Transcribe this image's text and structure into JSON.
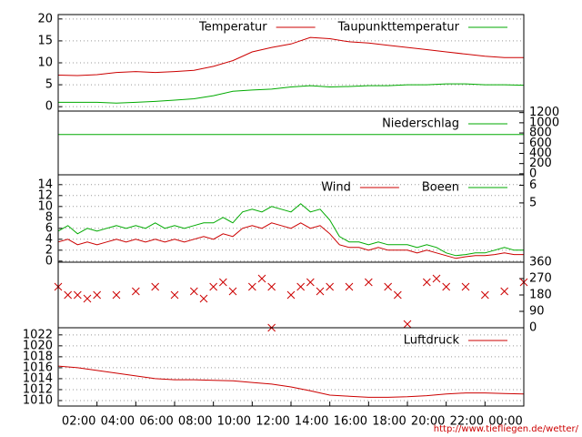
{
  "chart_data": [
    {
      "type": "line",
      "legend": "upper right",
      "grid": true,
      "x": [
        0,
        1,
        2,
        3,
        4,
        5,
        6,
        7,
        8,
        9,
        10,
        11,
        12,
        13,
        14,
        15,
        16,
        17,
        18,
        19,
        20,
        21,
        22,
        23,
        24
      ],
      "xlim": [
        0,
        24
      ],
      "ylim": [
        -1,
        21
      ],
      "yticks": [
        0,
        5,
        10,
        15,
        20
      ],
      "series": [
        {
          "name": "Temperatur",
          "color": "#cc0000",
          "values": [
            7.2,
            7.1,
            7.3,
            7.8,
            8.0,
            7.8,
            8.0,
            8.3,
            9.2,
            10.5,
            12.5,
            13.5,
            14.3,
            15.8,
            15.5,
            14.8,
            14.5,
            14.0,
            13.5,
            13.0,
            12.5,
            12.0,
            11.5,
            11.2,
            11.2
          ]
        },
        {
          "name": "Taupunkttemperatur",
          "color": "#00aa00",
          "values": [
            1.0,
            1.0,
            1.0,
            0.8,
            1.0,
            1.2,
            1.5,
            1.8,
            2.5,
            3.5,
            3.8,
            4.0,
            4.5,
            4.8,
            4.5,
            4.6,
            4.8,
            4.8,
            5.0,
            5.0,
            5.2,
            5.2,
            5.0,
            5.0,
            4.9
          ]
        }
      ]
    },
    {
      "type": "line",
      "legend": "upper right",
      "grid": false,
      "x": [
        0,
        24
      ],
      "xlim": [
        0,
        24
      ],
      "y2lim": [
        -20,
        1230
      ],
      "y2ticks": [
        0,
        200,
        400,
        600,
        800,
        1000,
        1200
      ],
      "series": [
        {
          "name": "Niederschlag",
          "color": "#00aa00",
          "axis": "y2",
          "values": [
            770,
            770
          ]
        }
      ]
    },
    {
      "type": "line",
      "legend": "upper right",
      "grid": true,
      "x": [
        0,
        0.5,
        1,
        1.5,
        2,
        2.5,
        3,
        3.5,
        4,
        4.5,
        5,
        5.5,
        6,
        6.5,
        7,
        7.5,
        8,
        8.5,
        9,
        9.5,
        10,
        10.5,
        11,
        11.5,
        12,
        12.5,
        13,
        13.5,
        14,
        14.5,
        15,
        15.5,
        16,
        16.5,
        17,
        17.5,
        18,
        18.5,
        19,
        19.5,
        20,
        20.5,
        21,
        21.5,
        22,
        22.5,
        23,
        23.5,
        24
      ],
      "xlim": [
        0,
        24
      ],
      "ylim": [
        -0.2,
        15.8
      ],
      "yticks": [
        0,
        2,
        4,
        6,
        8,
        10,
        12,
        14
      ],
      "y2lim": [
        1.65,
        6.59
      ],
      "y2ticks": [
        5,
        6
      ],
      "series": [
        {
          "name": "Wind",
          "color": "#cc0000",
          "values": [
            3.5,
            4,
            3,
            3.5,
            3,
            3.5,
            4,
            3.5,
            4,
            3.5,
            4,
            3.5,
            4,
            3.5,
            4,
            4.5,
            4,
            5,
            4.5,
            6,
            6.5,
            6,
            7,
            6.5,
            6,
            7,
            6,
            6.5,
            5,
            3,
            2.5,
            2.5,
            2,
            2.5,
            2,
            2,
            2,
            1.5,
            2,
            1.5,
            1,
            0.5,
            0.8,
            1,
            1,
            1.2,
            1.5,
            1.2,
            1.2
          ]
        },
        {
          "name": "Boeen",
          "color": "#00aa00",
          "values": [
            5.5,
            6.5,
            5,
            6,
            5.5,
            6,
            6.5,
            6,
            6.5,
            6,
            7,
            6,
            6.5,
            6,
            6.5,
            7,
            7,
            8,
            7,
            9,
            9.5,
            9,
            10,
            9.5,
            9,
            10.5,
            9,
            9.5,
            7.5,
            4.5,
            3.5,
            3.5,
            3,
            3.5,
            3,
            3,
            3,
            2.5,
            3,
            2.5,
            1.5,
            1,
            1.2,
            1.5,
            1.5,
            2,
            2.5,
            2,
            2
          ]
        }
      ]
    },
    {
      "type": "scatter",
      "grid": false,
      "x": [
        0,
        0.5,
        1,
        1.5,
        2,
        3,
        4,
        5,
        6,
        7,
        7.5,
        8,
        8.5,
        9,
        10,
        10.5,
        11,
        11,
        12,
        12.5,
        13,
        13.5,
        14,
        15,
        16,
        17,
        17.5,
        18,
        19,
        19.5,
        20,
        21,
        22,
        23,
        24
      ],
      "xlim": [
        0,
        24
      ],
      "y2lim": [
        0,
        360
      ],
      "y2ticks": [
        0,
        90,
        180,
        270,
        360
      ],
      "series": [
        {
          "color": "#cc0000",
          "axis": "y2",
          "values": [
            225,
            180,
            180,
            160,
            180,
            180,
            200,
            225,
            180,
            200,
            160,
            225,
            250,
            200,
            225,
            270,
            225,
            0,
            180,
            225,
            250,
            200,
            225,
            225,
            250,
            225,
            180,
            20,
            250,
            270,
            225,
            225,
            180,
            200,
            250
          ]
        }
      ]
    },
    {
      "type": "line",
      "legend": "upper right",
      "grid": true,
      "x": [
        0,
        1,
        2,
        3,
        4,
        5,
        6,
        7,
        8,
        9,
        10,
        11,
        12,
        13,
        14,
        15,
        16,
        17,
        18,
        19,
        20,
        21,
        22,
        23,
        24
      ],
      "xlim": [
        0,
        24
      ],
      "ylim": [
        1009,
        1023.3
      ],
      "yticks": [
        1010,
        1012,
        1014,
        1016,
        1018,
        1020,
        1022
      ],
      "xticks": [
        {
          "value": 2,
          "label": "02:00"
        },
        {
          "value": 4,
          "label": "04:00"
        },
        {
          "value": 6,
          "label": "06:00"
        },
        {
          "value": 8,
          "label": "08:00"
        },
        {
          "value": 10,
          "label": "10:00"
        },
        {
          "value": 12,
          "label": "12:00"
        },
        {
          "value": 14,
          "label": "14:00"
        },
        {
          "value": 16,
          "label": "16:00"
        },
        {
          "value": 18,
          "label": "18:00"
        },
        {
          "value": 20,
          "label": "20:00"
        },
        {
          "value": 22,
          "label": "22:00"
        },
        {
          "value": 24,
          "label": "00:00"
        }
      ],
      "series": [
        {
          "name": "Luftdruck",
          "color": "#cc0000",
          "values": [
            1016.3,
            1016.0,
            1015.5,
            1015.0,
            1014.5,
            1014.0,
            1013.8,
            1013.8,
            1013.7,
            1013.6,
            1013.3,
            1013.0,
            1012.5,
            1011.8,
            1011.0,
            1010.8,
            1010.6,
            1010.6,
            1010.7,
            1010.9,
            1011.2,
            1011.4,
            1011.4,
            1011.3,
            1011.2
          ]
        }
      ],
      "source": "http://www.tiefliegen.de/wetter/"
    }
  ]
}
